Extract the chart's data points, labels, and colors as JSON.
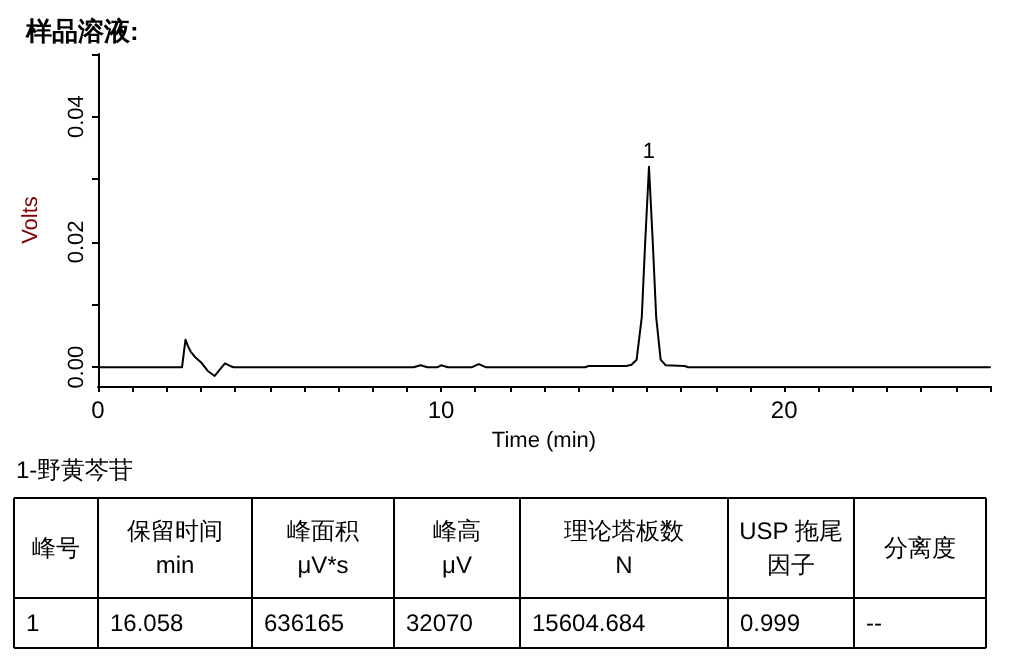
{
  "chart_data": {
    "type": "line",
    "title": "样品溶液:",
    "xlabel": "Time (min)",
    "ylabel": "Volts",
    "xlim": [
      0,
      26
    ],
    "ylim": [
      -0.003,
      0.05
    ],
    "xticks": [
      0,
      {
        "value": 1,
        "label": null
      },
      {
        "value": 2,
        "label": null
      },
      {
        "value": 3,
        "label": null
      },
      {
        "value": 4,
        "label": null
      },
      {
        "value": 5,
        "label": null
      },
      {
        "value": 6,
        "label": null
      },
      {
        "value": 7,
        "label": null
      },
      {
        "value": 8,
        "label": null
      },
      {
        "value": 9,
        "label": null
      },
      10,
      {
        "value": 11,
        "label": null
      },
      {
        "value": 12,
        "label": null
      },
      {
        "value": 13,
        "label": null
      },
      {
        "value": 14,
        "label": null
      },
      {
        "value": 15,
        "label": null
      },
      {
        "value": 16,
        "label": null
      },
      {
        "value": 17,
        "label": null
      },
      {
        "value": 18,
        "label": null
      },
      {
        "value": 19,
        "label": null
      },
      20,
      {
        "value": 21,
        "label": null
      },
      {
        "value": 22,
        "label": null
      },
      {
        "value": 23,
        "label": null
      },
      {
        "value": 24,
        "label": null
      },
      {
        "value": 25,
        "label": null
      },
      {
        "value": 26,
        "label": null
      }
    ],
    "yticks": [
      {
        "value": 0,
        "label": "0.00"
      },
      {
        "value": 0.01,
        "label": null
      },
      {
        "value": 0.02,
        "label": "0.02"
      },
      {
        "value": 0.03,
        "label": null
      },
      {
        "value": 0.04,
        "label": "0.04"
      },
      {
        "value": 0.05,
        "label": null
      }
    ],
    "grid": false,
    "marker": "none",
    "line_style": "solid",
    "series": [
      {
        "color": "#000000",
        "x": [
          0,
          2.45,
          2.55,
          2.62,
          2.7,
          2.85,
          3.0,
          3.2,
          3.4,
          3.55,
          3.7,
          3.85,
          3.95,
          9.2,
          9.4,
          9.6,
          9.9,
          10.0,
          10.2,
          10.9,
          11.1,
          11.3,
          14.2,
          14.3,
          15.4,
          15.55,
          15.7,
          15.85,
          15.95,
          16.06,
          16.17,
          16.27,
          16.4,
          16.55,
          17.1,
          17.2,
          26
        ],
        "values": [
          0,
          0,
          0.0044,
          0.0034,
          0.0025,
          0.0015,
          0.0008,
          -0.0006,
          -0.0014,
          -0.0004,
          0.0006,
          0.0002,
          0,
          0,
          0.0003,
          0,
          0,
          0.0003,
          0,
          0,
          0.0005,
          0,
          0,
          0.0002,
          0.0002,
          0.0004,
          0.0012,
          0.008,
          0.02,
          0.032,
          0.02,
          0.008,
          0.0012,
          0.0003,
          0.0002,
          0,
          0
        ]
      }
    ],
    "annotations": [
      {
        "text": "1",
        "x": 16.058,
        "y": 0.032
      },
      "1-野黄芩苷",
      "峰号",
      "保留时间\nmin",
      "峰面积\nμV*s",
      "峰高\nμV",
      "理论塔板数\nN",
      "USP 拖尾因子",
      "分离度",
      "1",
      "16.058",
      "636165",
      "32070",
      "15604.684",
      "0.999",
      "--"
    ]
  }
}
